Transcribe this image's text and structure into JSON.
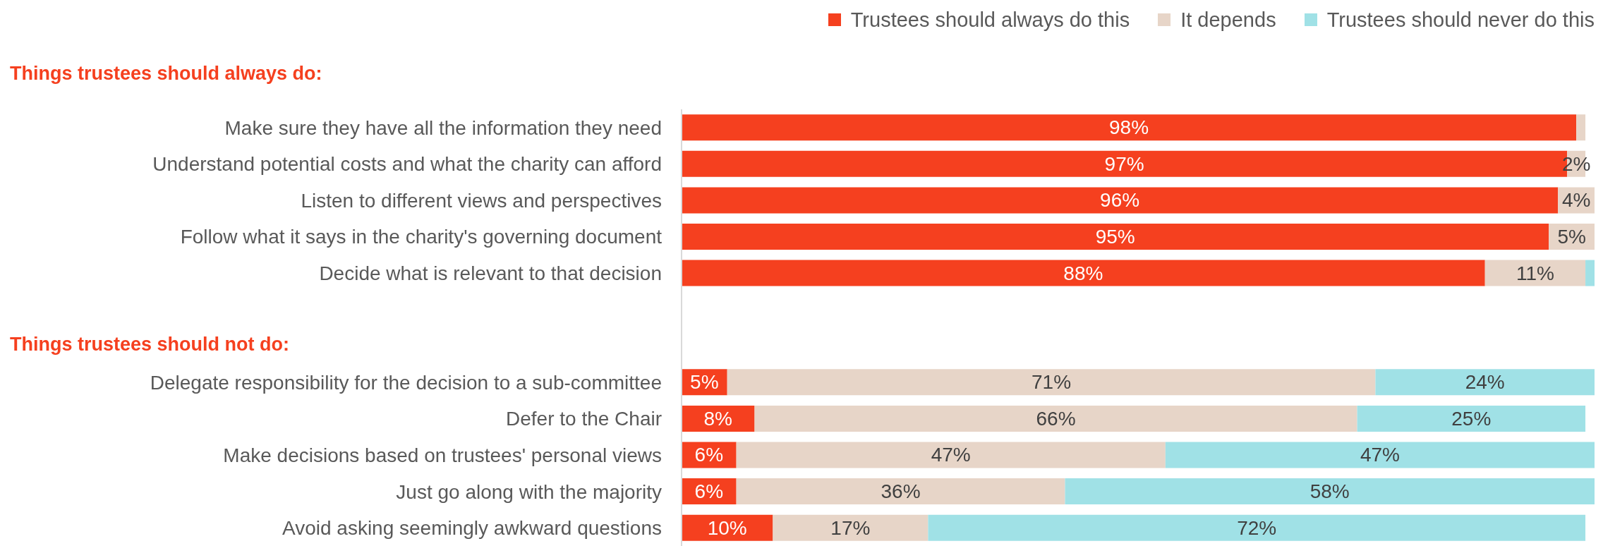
{
  "chart_data": {
    "type": "bar",
    "orientation": "horizontal",
    "stacked": true,
    "legend": "top right",
    "xlim": [
      0,
      100
    ],
    "tick_labels": "y",
    "categories": [
      "Make sure they have all the information they need",
      "Understand potential costs and what the charity can afford",
      "Listen to different views and perspectives",
      "Follow what it says in the charity's governing document",
      "Decide what is relevant to that decision",
      null,
      null,
      "Delegate responsibility for the decision to a sub-committee",
      "Defer to the Chair",
      "Make decisions based on trustees' personal views",
      "Just go along with the majority",
      "Avoid asking seemingly awkward questions"
    ],
    "series": [
      {
        "name": "Trustees should always do this",
        "color": "#f5401f",
        "values": [
          98,
          97,
          96,
          95,
          88,
          null,
          null,
          5,
          8,
          6,
          6,
          10
        ],
        "value_labels": [
          "98%",
          "97%",
          "96%",
          "95%",
          "88%",
          null,
          null,
          "5%",
          "8%",
          "6%",
          "6%",
          "10%"
        ]
      },
      {
        "name": "It depends",
        "color": "#e7d5c8",
        "values": [
          1,
          2,
          4,
          5,
          11,
          null,
          null,
          71,
          66,
          47,
          36,
          17
        ],
        "value_labels": [
          null,
          "2%",
          "4%",
          "5%",
          "11%",
          null,
          null,
          "71%",
          "66%",
          "47%",
          "36%",
          "17%"
        ]
      },
      {
        "name": "Trustees should never do this",
        "color": "#a0e1e6",
        "values": [
          null,
          null,
          null,
          null,
          1,
          null,
          null,
          24,
          25,
          47,
          58,
          72
        ],
        "value_labels": [
          null,
          null,
          null,
          null,
          null,
          null,
          null,
          "24%",
          "25%",
          "47%",
          "58%",
          "72%"
        ]
      }
    ],
    "annotations": [
      "Things trustees should always do:",
      "Things trustees should not do:"
    ]
  }
}
